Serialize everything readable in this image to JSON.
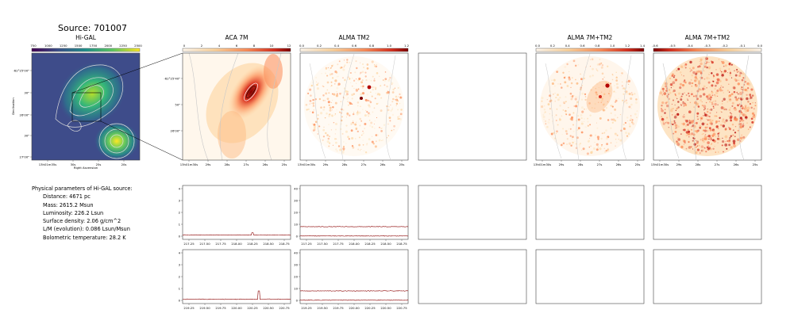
{
  "source_title": "Source: 701007",
  "params": {
    "header": "Physical parameters of Hi-GAL source:",
    "rows": [
      "Distance: 4671 pc",
      "Mass: 2615.2 Msun",
      "Luminosity: 226.2 Lsun",
      "Surface density: 2.06 g/cm^2",
      "L/M (evolution): 0.086 Lsun/Msun",
      "Bolometric temperature: 28.2 K"
    ]
  },
  "colors": {
    "higal_map": "viridis",
    "alma_map": "OrRd",
    "spectrum_line": "#8b0000",
    "contour": "#b0b0b0",
    "frame": "#444444"
  },
  "chart_data": [
    {
      "type": "heatmap",
      "panel": "higal",
      "title": "Hi-GAL",
      "colorbar_ticks": [
        "750",
        "1000",
        "1250",
        "1500",
        "1750",
        "2000",
        "2250",
        "2500"
      ],
      "xlabel": "Right Ascension",
      "ylabel": "Declination",
      "x_ticks": [
        "13h01m35s",
        "30s",
        "25s",
        "20s"
      ],
      "y_ticks": [
        "-62°25'00\"",
        "30\"",
        "26'00\"",
        "30\"",
        "27'00\""
      ],
      "sources": [
        {
          "name": "main",
          "x": 0.55,
          "y": 0.4,
          "peak": 2500
        },
        {
          "name": "south",
          "x": 0.78,
          "y": 0.75,
          "peak": 2400
        }
      ]
    },
    {
      "type": "heatmap",
      "panel": "aca",
      "title": "ACA 7M",
      "colorbar_ticks": [
        "0",
        "2",
        "4",
        "6",
        "8",
        "10",
        "12"
      ],
      "x_ticks": [
        "13h01m30s",
        "29s",
        "28s",
        "27s",
        "26s",
        "25s"
      ],
      "y_ticks": [
        "-62°25'40\"",
        "50\"",
        "26'00\""
      ]
    },
    {
      "type": "heatmap",
      "panel": "alma_tm2",
      "title": "ALMA TM2",
      "colorbar_ticks": [
        "0.0",
        "0.2",
        "0.4",
        "0.6",
        "0.8",
        "1.0",
        "1.2"
      ],
      "x_ticks": [
        "13h01m30s",
        "29s",
        "28s",
        "27s",
        "26s",
        "25s"
      ]
    },
    {
      "type": "heatmap",
      "panel": "alma_7m_tm2",
      "title": "ALMA 7M+TM2",
      "colorbar_ticks": [
        "0.0",
        "0.2",
        "0.4",
        "0.6",
        "0.8",
        "1.0",
        "1.2",
        "1.4"
      ],
      "x_ticks": [
        "13h01m30s",
        "29s",
        "28s",
        "27s",
        "26s",
        "25s"
      ]
    },
    {
      "type": "heatmap",
      "panel": "alma_7m_tm2_diff",
      "title": "ALMA 7M+TM2",
      "colorbar_ticks": [
        "-0.6",
        "-0.5",
        "-0.4",
        "-0.3",
        "-0.2",
        "-0.1",
        "0.0"
      ],
      "x_ticks": [
        "13h01m30s",
        "29s",
        "28s",
        "27s",
        "26s",
        "25s"
      ]
    },
    {
      "type": "line",
      "panel": "spec_aca_1",
      "x_ticks": [
        "217.25",
        "217.50",
        "217.75",
        "218.00",
        "218.25",
        "218.50",
        "218.75"
      ],
      "y_ticks": [
        "0",
        "1",
        "2",
        "3",
        "4"
      ],
      "ylim": [
        0,
        4
      ],
      "series": [
        {
          "baseline": 0.1,
          "spikes": [
            {
              "x": 218.25,
              "y": 0.3
            }
          ]
        }
      ]
    },
    {
      "type": "line",
      "panel": "spec_tm2_1",
      "x_ticks": [
        "217.25",
        "217.50",
        "217.75",
        "218.00",
        "218.25",
        "218.50",
        "218.75"
      ],
      "y_ticks": [
        "0",
        "10",
        "20",
        "30",
        "40"
      ],
      "ylim": [
        0,
        40
      ],
      "series": [
        {
          "baseline": 0.2,
          "spikes": []
        },
        {
          "baseline": 8.0,
          "spikes": []
        }
      ]
    },
    {
      "type": "line",
      "panel": "spec_aca_2",
      "x_ticks": [
        "219.25",
        "219.50",
        "219.75",
        "220.00",
        "220.25",
        "220.50",
        "220.75"
      ],
      "y_ticks": [
        "0",
        "1",
        "2",
        "3",
        "4"
      ],
      "ylim": [
        0,
        4
      ],
      "series": [
        {
          "baseline": 0.1,
          "spikes": [
            {
              "x": 220.35,
              "y": 0.8
            }
          ]
        }
      ]
    },
    {
      "type": "line",
      "panel": "spec_tm2_2",
      "x_ticks": [
        "219.25",
        "219.50",
        "219.75",
        "220.00",
        "220.25",
        "220.50",
        "220.75"
      ],
      "y_ticks": [
        "0",
        "10",
        "20",
        "30",
        "40"
      ],
      "ylim": [
        0,
        40
      ],
      "series": [
        {
          "baseline": 0.2,
          "spikes": []
        },
        {
          "baseline": 8.0,
          "spikes": []
        }
      ]
    }
  ]
}
